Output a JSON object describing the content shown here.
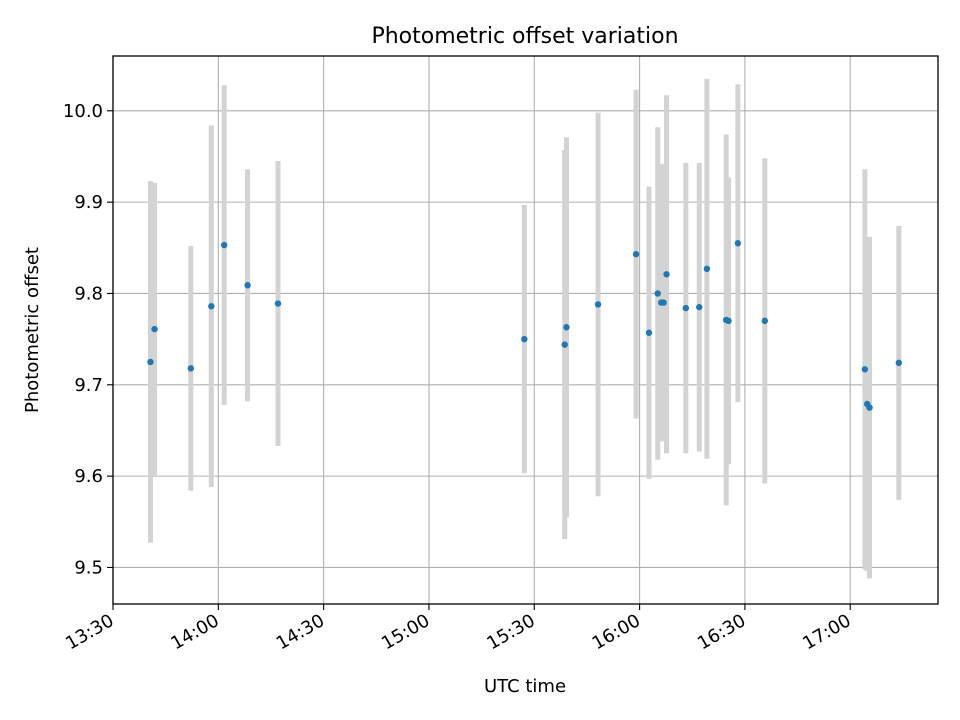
{
  "chart_data": {
    "type": "scatter",
    "title": "Photometric offset variation",
    "xlabel": "UTC time",
    "ylabel": "Photometric offset",
    "xlim": [
      "13:30",
      "17:25"
    ],
    "ylim": [
      9.46,
      10.06
    ],
    "xticks": [
      "13:30",
      "14:00",
      "14:30",
      "15:00",
      "15:30",
      "16:00",
      "16:30",
      "17:00"
    ],
    "yticks": [
      "9.5",
      "9.6",
      "9.7",
      "9.8",
      "9.9",
      "10.0"
    ],
    "grid": true,
    "colors": {
      "point": "#1f77b4",
      "errorbar": "#d3d3d3",
      "grid": "#b0b0b0"
    },
    "series": [
      {
        "points": [
          {
            "x": "13:40:40",
            "y": 9.725,
            "yerr": 0.198
          },
          {
            "x": "13:41:50",
            "y": 9.761,
            "yerr": 0.16
          },
          {
            "x": "13:52:10",
            "y": 9.718,
            "yerr": 0.134
          },
          {
            "x": "13:58:00",
            "y": 9.786,
            "yerr": 0.198
          },
          {
            "x": "14:01:40",
            "y": 9.853,
            "yerr": 0.175
          },
          {
            "x": "14:08:20",
            "y": 9.809,
            "yerr": 0.127
          },
          {
            "x": "14:17:00",
            "y": 9.789,
            "yerr": 0.156
          },
          {
            "x": "15:27:10",
            "y": 9.75,
            "yerr": 0.147
          },
          {
            "x": "15:38:40",
            "y": 9.744,
            "yerr": 0.213
          },
          {
            "x": "15:39:10",
            "y": 9.763,
            "yerr": 0.208
          },
          {
            "x": "15:48:10",
            "y": 9.788,
            "yerr": 0.21
          },
          {
            "x": "15:59:00",
            "y": 9.843,
            "yerr": 0.18
          },
          {
            "x": "16:02:40",
            "y": 9.757,
            "yerr": 0.16
          },
          {
            "x": "16:05:10",
            "y": 9.8,
            "yerr": 0.182
          },
          {
            "x": "16:06:10",
            "y": 9.79,
            "yerr": 0.152
          },
          {
            "x": "16:06:50",
            "y": 9.79,
            "yerr": 0.15
          },
          {
            "x": "16:07:40",
            "y": 9.821,
            "yerr": 0.196
          },
          {
            "x": "16:13:10",
            "y": 9.784,
            "yerr": 0.159
          },
          {
            "x": "16:17:00",
            "y": 9.785,
            "yerr": 0.158
          },
          {
            "x": "16:19:10",
            "y": 9.827,
            "yerr": 0.208
          },
          {
            "x": "16:24:40",
            "y": 9.771,
            "yerr": 0.203
          },
          {
            "x": "16:25:20",
            "y": 9.77,
            "yerr": 0.157
          },
          {
            "x": "16:28:00",
            "y": 9.855,
            "yerr": 0.174
          },
          {
            "x": "16:35:40",
            "y": 9.77,
            "yerr": 0.178
          },
          {
            "x": "17:04:10",
            "y": 9.717,
            "yerr": 0.219
          },
          {
            "x": "17:04:50",
            "y": 9.679,
            "yerr": 0.183
          },
          {
            "x": "17:05:30",
            "y": 9.675,
            "yerr": 0.187
          },
          {
            "x": "17:13:50",
            "y": 9.724,
            "yerr": 0.15
          }
        ]
      }
    ]
  }
}
